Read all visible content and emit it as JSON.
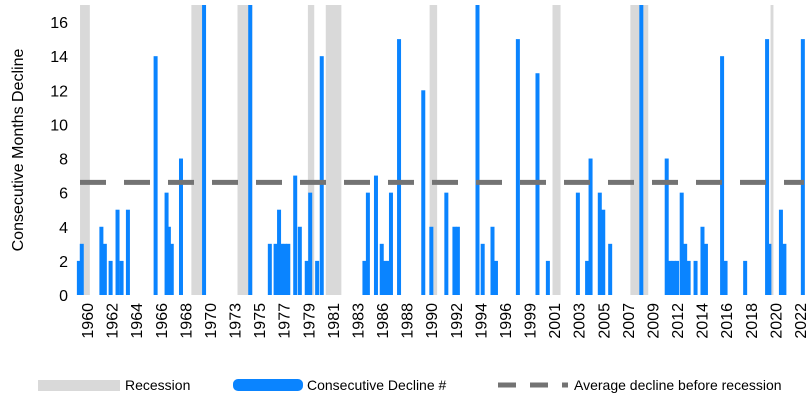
{
  "chart_data": {
    "type": "bar",
    "ylabel": "Consecutive Months Decline",
    "xlabel": "",
    "ylim": [
      0,
      17
    ],
    "yticks": [
      0,
      2,
      4,
      6,
      8,
      10,
      12,
      14,
      16
    ],
    "xlim": [
      1959.9,
      2023.0
    ],
    "xtick_labels": [
      "1960",
      "1962",
      "1964",
      "1966",
      "1968",
      "1970",
      "1973",
      "1975",
      "1977",
      "1979",
      "1981",
      "1983",
      "1986",
      "1988",
      "1990",
      "1992",
      "1994",
      "1996",
      "1999",
      "2001",
      "2003",
      "2005",
      "2007",
      "2009",
      "2012",
      "2014",
      "2016",
      "2018",
      "2020",
      "2022"
    ],
    "grid": false,
    "legend_position": "bottom",
    "legend": [
      "Recession",
      "Consecutive Decline #",
      "Average decline before recession"
    ],
    "colors": {
      "recession": "#d9d9d9",
      "decline": "#0a84ff",
      "average": "#737373"
    },
    "average_decline": 6.6,
    "recessions": [
      [
        1960.25,
        1961.1
      ],
      [
        1969.9,
        1970.9
      ],
      [
        1973.9,
        1975.2
      ],
      [
        1980.0,
        1980.55
      ],
      [
        1981.55,
        1982.9
      ],
      [
        1990.55,
        1991.2
      ],
      [
        2001.2,
        2001.9
      ],
      [
        2007.95,
        2009.5
      ],
      [
        2020.1,
        2020.35
      ]
    ],
    "series": [
      {
        "x": [
          1960.15,
          1960.4,
          1962.1,
          1962.4,
          1962.9,
          1963.5,
          1963.85,
          1964.4,
          1966.8,
          1967.75,
          1967.95,
          1968.2,
          1969.0,
          1971.0,
          1975.0,
          1976.7,
          1977.2,
          1977.5,
          1977.7,
          1978.0,
          1978.3,
          1978.9,
          1979.3,
          1979.9,
          1980.2,
          1980.8,
          1981.2,
          1984.9,
          1985.2,
          1985.9,
          1986.4,
          1986.7,
          1987.0,
          1987.2,
          1987.9,
          1990.0,
          1990.7,
          1992.0,
          1992.7,
          1993.0,
          1994.7,
          1995.15,
          1996.0,
          1996.3,
          1998.2,
          1999.9,
          2000.8,
          2003.4,
          2004.2,
          2004.5,
          2005.3,
          2005.6,
          2006.2,
          2008.9,
          2011.1,
          2011.4,
          2011.7,
          2012.0,
          2012.4,
          2012.7,
          2013.0,
          2013.6,
          2014.2,
          2014.5,
          2015.9,
          2016.2,
          2017.9,
          2019.8,
          2020.0,
          2021.0,
          2021.3,
          2022.9
        ],
        "values": [
          2,
          3,
          4,
          3,
          2,
          5,
          2,
          5,
          14,
          6,
          4,
          3,
          8,
          17,
          17,
          3,
          3,
          5,
          3,
          3,
          3,
          7,
          4,
          2,
          6,
          2,
          14,
          2,
          6,
          7,
          3,
          2,
          2,
          6,
          15,
          12,
          4,
          6,
          4,
          4,
          17,
          3,
          4,
          2,
          15,
          13,
          2,
          6,
          2,
          8,
          6,
          5,
          3,
          17,
          8,
          2,
          2,
          2,
          6,
          3,
          2,
          2,
          4,
          3,
          14,
          2,
          2,
          15,
          3,
          5,
          3,
          15
        ]
      }
    ]
  }
}
